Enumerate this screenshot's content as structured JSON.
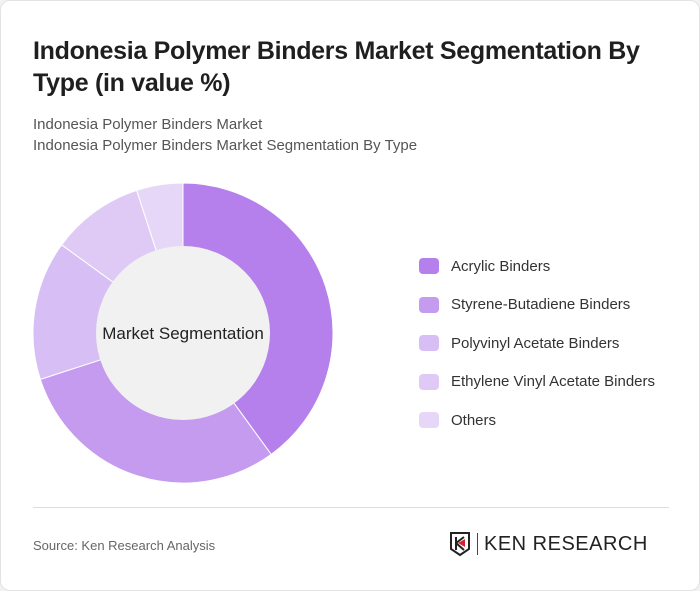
{
  "title": "Indonesia Polymer Binders Market Segmentation By Type (in value %)",
  "subtitle1": "Indonesia Polymer Binders Market",
  "subtitle2": "Indonesia Polymer Binders Market Segmentation By Type",
  "source": "Source: Ken Research Analysis",
  "logo_text": "KEN RESEARCH",
  "chart_data": {
    "type": "pie",
    "center_label": "Market Segmentation",
    "legend_position": "right",
    "categories": [
      "Acrylic Binders",
      "Styrene-Butadiene Binders",
      "Polyvinyl Acetate Binders",
      "Ethylene Vinyl Acetate Binders",
      "Others"
    ],
    "values": [
      40,
      30,
      15,
      10,
      5
    ],
    "colors": [
      "#b57fec",
      "#c59bef",
      "#d7bff5",
      "#dfcaf6",
      "#e6d7f8"
    ]
  }
}
